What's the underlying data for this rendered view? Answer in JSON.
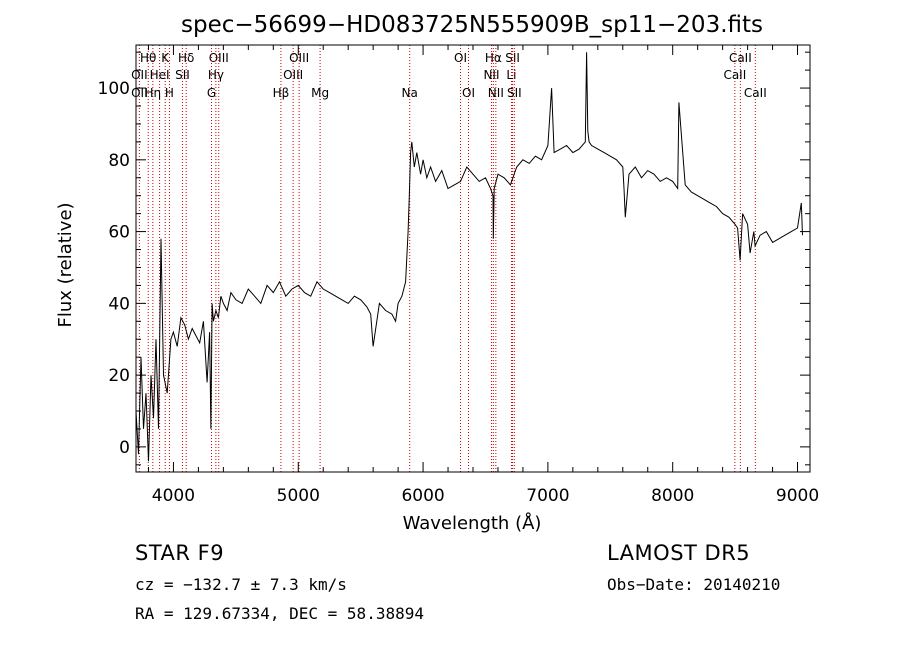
{
  "chart_data": {
    "type": "line",
    "title": "spec−56699−HD083725N555909B_sp11−203.fits",
    "xlabel": "Wavelength (Å)",
    "ylabel": "Flux (relative)",
    "xlim": [
      3700,
      9100
    ],
    "ylim": [
      -7,
      112
    ],
    "xticks": [
      4000,
      5000,
      6000,
      7000,
      8000,
      9000
    ],
    "yticks": [
      0,
      20,
      40,
      60,
      80,
      100
    ],
    "grid": false,
    "series": [
      {
        "x": [
          3700,
          3720,
          3740,
          3760,
          3780,
          3800,
          3820,
          3840,
          3860,
          3880,
          3900,
          3920,
          3950,
          3980,
          4000,
          4030,
          4060,
          4090,
          4120,
          4150,
          4180,
          4210,
          4240,
          4270,
          4290,
          4300,
          4310,
          4320,
          4340,
          4360,
          4380,
          4400,
          4430,
          4460,
          4500,
          4550,
          4600,
          4650,
          4700,
          4750,
          4800,
          4850,
          4900,
          4950,
          5000,
          5050,
          5100,
          5150,
          5200,
          5250,
          5300,
          5350,
          5400,
          5450,
          5500,
          5550,
          5580,
          5600,
          5650,
          5700,
          5750,
          5780,
          5800,
          5830,
          5860,
          5880,
          5890,
          5900,
          5910,
          5930,
          5950,
          5980,
          6000,
          6030,
          6060,
          6100,
          6150,
          6200,
          6250,
          6300,
          6350,
          6400,
          6450,
          6500,
          6540,
          6560,
          6563,
          6570,
          6600,
          6650,
          6700,
          6750,
          6800,
          6850,
          6900,
          6950,
          7000,
          7030,
          7050,
          7100,
          7150,
          7200,
          7250,
          7300,
          7310,
          7320,
          7330,
          7350,
          7400,
          7450,
          7500,
          7550,
          7600,
          7610,
          7620,
          7650,
          7700,
          7750,
          7800,
          7850,
          7900,
          7950,
          8000,
          8040,
          8050,
          8100,
          8150,
          8200,
          8250,
          8300,
          8350,
          8400,
          8450,
          8500,
          8520,
          8540,
          8560,
          8600,
          8620,
          8650,
          8660,
          8700,
          8750,
          8800,
          8850,
          8900,
          8950,
          9000,
          9030,
          9040
        ],
        "y": [
          10,
          -2,
          25,
          5,
          15,
          -4,
          20,
          8,
          30,
          5,
          58,
          20,
          15,
          30,
          32,
          28,
          36,
          34,
          30,
          33,
          31,
          29,
          35,
          18,
          32,
          5,
          40,
          35,
          38,
          36,
          42,
          40,
          38,
          43,
          41,
          40,
          44,
          42,
          40,
          45,
          43,
          46,
          42,
          44,
          45,
          43,
          42,
          46,
          44,
          43,
          42,
          41,
          40,
          42,
          41,
          39,
          37,
          28,
          40,
          38,
          37,
          35,
          40,
          42,
          46,
          60,
          70,
          82,
          85,
          78,
          82,
          76,
          80,
          75,
          78,
          74,
          77,
          72,
          73,
          74,
          78,
          76,
          74,
          75,
          72,
          70,
          58,
          72,
          76,
          75,
          73,
          78,
          80,
          79,
          81,
          80,
          84,
          100,
          82,
          83,
          84,
          82,
          83,
          85,
          110,
          88,
          85,
          84,
          83,
          82,
          81,
          80,
          78,
          72,
          64,
          76,
          78,
          75,
          77,
          76,
          74,
          75,
          74,
          72,
          96,
          73,
          71,
          70,
          69,
          68,
          67,
          65,
          64,
          62,
          61,
          52,
          65,
          62,
          54,
          60,
          56,
          59,
          60,
          57,
          58,
          59,
          60,
          61,
          68,
          59
        ],
        "color": "#000000"
      }
    ],
    "line_marks": {
      "top": [
        {
          "label": "Hθ",
          "wl": 3798
        },
        {
          "label": "K",
          "wl": 3934
        },
        {
          "label": "Hδ",
          "wl": 4102
        },
        {
          "label": "OIII",
          "wl": 4363
        },
        {
          "label": "OIII",
          "wl": 5007
        },
        {
          "label": "OI",
          "wl": 6300
        },
        {
          "label": "Hα",
          "wl": 6563
        },
        {
          "label": "SII",
          "wl": 6717
        },
        {
          "label": "CaII",
          "wl": 8542
        }
      ],
      "mid": [
        {
          "label": "OII",
          "wl": 3727
        },
        {
          "label": "HeI",
          "wl": 3889
        },
        {
          "label": "SII",
          "wl": 4072
        },
        {
          "label": "Hγ",
          "wl": 4340
        },
        {
          "label": "OIII",
          "wl": 4959
        },
        {
          "label": "NII",
          "wl": 6548
        },
        {
          "label": "Li",
          "wl": 6708
        },
        {
          "label": "CaII",
          "wl": 8498
        }
      ],
      "low": [
        {
          "label": "OII",
          "wl": 3727
        },
        {
          "label": "Hη",
          "wl": 3835
        },
        {
          "label": "H",
          "wl": 3968
        },
        {
          "label": "G",
          "wl": 4305
        },
        {
          "label": "Hβ",
          "wl": 4861
        },
        {
          "label": "Mg",
          "wl": 5175
        },
        {
          "label": "Na",
          "wl": 5893
        },
        {
          "label": "OI",
          "wl": 6364
        },
        {
          "label": "NII",
          "wl": 6583
        },
        {
          "label": "SII",
          "wl": 6731
        },
        {
          "label": "CaII",
          "wl": 8662
        }
      ]
    }
  },
  "info": {
    "classification": "STAR     F9",
    "survey": "LAMOST DR5",
    "redshift": "cz = −132.7 ± 7.3 km/s",
    "obs_date": "Obs−Date: 20140210",
    "coords": "RA = 129.67334, DEC =  58.38894"
  }
}
